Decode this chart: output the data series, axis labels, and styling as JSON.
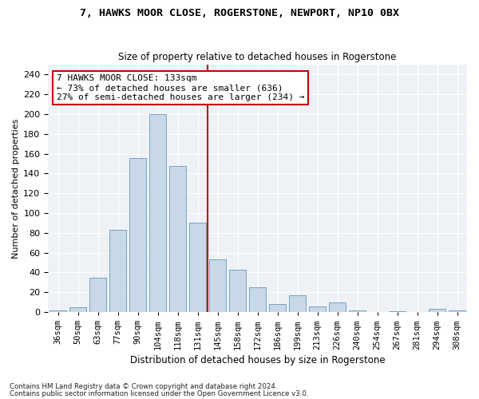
{
  "title": "7, HAWKS MOOR CLOSE, ROGERSTONE, NEWPORT, NP10 0BX",
  "subtitle": "Size of property relative to detached houses in Rogerstone",
  "xlabel": "Distribution of detached houses by size in Rogerstone",
  "ylabel": "Number of detached properties",
  "bar_color": "#c8d8e8",
  "bar_edge_color": "#6699bb",
  "marker_color": "#cc0000",
  "annotation_title": "7 HAWKS MOOR CLOSE: 133sqm",
  "annotation_line1": "← 73% of detached houses are smaller (636)",
  "annotation_line2": "27% of semi-detached houses are larger (234) →",
  "footnote1": "Contains HM Land Registry data © Crown copyright and database right 2024.",
  "footnote2": "Contains public sector information licensed under the Open Government Licence v3.0.",
  "categories": [
    "36sqm",
    "50sqm",
    "63sqm",
    "77sqm",
    "90sqm",
    "104sqm",
    "118sqm",
    "131sqm",
    "145sqm",
    "158sqm",
    "172sqm",
    "186sqm",
    "199sqm",
    "213sqm",
    "226sqm",
    "240sqm",
    "254sqm",
    "267sqm",
    "281sqm",
    "294sqm",
    "308sqm"
  ],
  "values": [
    2,
    5,
    35,
    83,
    156,
    200,
    148,
    90,
    53,
    43,
    25,
    8,
    17,
    6,
    10,
    2,
    0,
    1,
    0,
    3,
    2
  ],
  "ylim": [
    0,
    250
  ],
  "yticks": [
    0,
    20,
    40,
    60,
    80,
    100,
    120,
    140,
    160,
    180,
    200,
    220,
    240
  ],
  "background_color": "#eef2f7"
}
